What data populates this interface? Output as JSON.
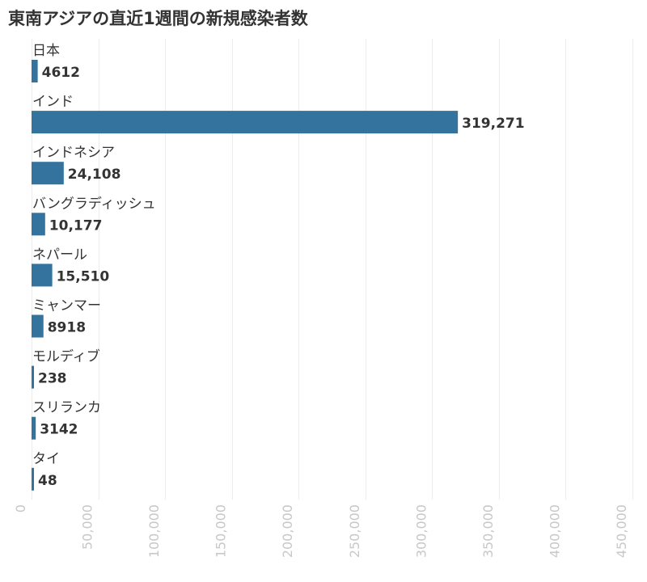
{
  "chart_data": {
    "type": "bar",
    "orientation": "horizontal",
    "title": "東南アジアの直近1週間の新規感染者数",
    "categories": [
      "日本",
      "インド",
      "インドネシア",
      "バングラディッシュ",
      "ネパール",
      "ミャンマー",
      "モルディブ",
      "スリランカ",
      "タイ"
    ],
    "values": [
      4612,
      319271,
      24108,
      10177,
      15510,
      8918,
      238,
      3142,
      48
    ],
    "value_labels": [
      "4612",
      "319,271",
      "24,108",
      "10,177",
      "15,510",
      "8918",
      "238",
      "3142",
      "48"
    ],
    "xlim": [
      0,
      450000
    ],
    "ticks": [
      0,
      50000,
      100000,
      150000,
      200000,
      250000,
      300000,
      350000,
      400000,
      450000
    ],
    "tick_labels": [
      "0",
      "50,000",
      "100,000",
      "150,000",
      "200,000",
      "250,000",
      "300,000",
      "350,000",
      "400,000",
      "450,000"
    ],
    "grid": true,
    "bar_color": "#33739e",
    "grid_color": "#ececec",
    "tick_label_color": "#c8c8c8"
  }
}
